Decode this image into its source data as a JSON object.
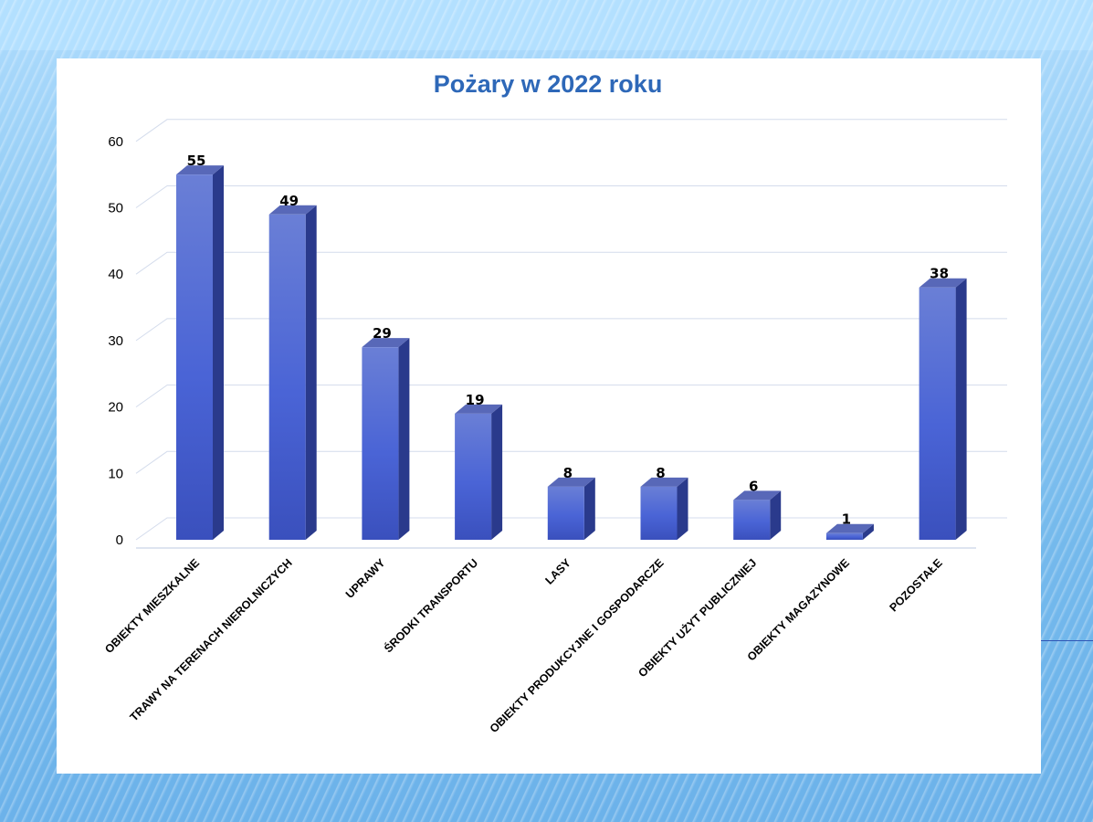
{
  "chart_data": {
    "type": "bar",
    "style": "3d-column",
    "title": "Pożary w 2022 roku",
    "xlabel": "",
    "ylabel": "",
    "categories": [
      "OBIEKTY MIESZKALNE",
      "TRAWY NA TERENACH NIEROLNICZYCH",
      "UPRAWY",
      "ŚRODKI TRANSPORTU",
      "LASY",
      "OBIEKTY PRODUKCYJNE I GOSPODARCZE",
      "OBIEKTY UŻYT PUBLICZNIEJ",
      "OBIEKTY MAGAZYNOWE",
      "POZOSTAŁE"
    ],
    "values": [
      55,
      49,
      29,
      19,
      8,
      8,
      6,
      1,
      38
    ],
    "data_labels": [
      "55",
      "49",
      "29",
      "19",
      "8",
      "8",
      "6",
      "1",
      "38"
    ],
    "ylim": [
      0,
      60
    ],
    "yticks": [
      "0",
      "10",
      "20",
      "30",
      "40",
      "50",
      "60"
    ],
    "grid": true,
    "legend": "none",
    "colors": {
      "bar_front_top": "#6a7fd6",
      "bar_front_mid": "#4a64d6",
      "bar_front_bottom": "#3a50bd",
      "bar_side": "#2a3a8c",
      "bar_top": "#5868b8",
      "grid": "#d4dcec",
      "title": "#2e68b8"
    }
  }
}
